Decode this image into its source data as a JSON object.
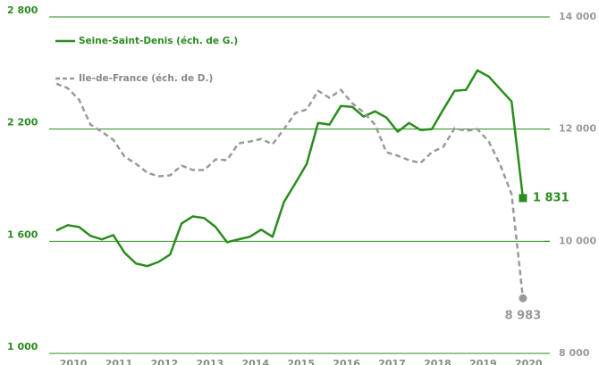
{
  "chart_data": {
    "type": "line",
    "categories": [
      null,
      "2010",
      null,
      null,
      null,
      "2011",
      null,
      null,
      null,
      "2012",
      null,
      null,
      null,
      "2013",
      null,
      null,
      null,
      "2014",
      null,
      null,
      null,
      "2015",
      null,
      null,
      null,
      "2016",
      null,
      null,
      null,
      "2017",
      null,
      null,
      null,
      "2018",
      null,
      null,
      null,
      "2019",
      null,
      null,
      null,
      "2020"
    ],
    "series": [
      {
        "name": "Seine-Saint-Denis (éch. de G.)",
        "color": "#2a8c1e",
        "marker": "square",
        "values": [
          1657,
          1686,
          1676,
          1629,
          1610,
          1633,
          1538,
          1481,
          1467,
          1490,
          1529,
          1695,
          1733,
          1724,
          1676,
          1595,
          1610,
          1624,
          1662,
          1624,
          1810,
          1910,
          2014,
          2233,
          2224,
          2324,
          2319,
          2267,
          2295,
          2262,
          2186,
          2233,
          2195,
          2200,
          2305,
          2405,
          2410,
          2514,
          2481,
          2414,
          2348,
          1831
        ],
        "value_labels": [
          null,
          null,
          null,
          null,
          null,
          null,
          null,
          null,
          null,
          null,
          null,
          null,
          null,
          null,
          null,
          null,
          null,
          null,
          null,
          null,
          null,
          null,
          null,
          null,
          null,
          null,
          null,
          null,
          null,
          null,
          null,
          null,
          null,
          null,
          null,
          null,
          null,
          null,
          null,
          null,
          null,
          "1 831"
        ]
      },
      {
        "name": "Ile-de-France (éch. de D.)",
        "color": "#999999",
        "axis": "y2",
        "dashed": true,
        "marker": "circle",
        "values": [
          12810,
          12730,
          12524,
          12080,
          11953,
          11810,
          11508,
          11381,
          11222,
          11159,
          11175,
          11350,
          11270,
          11270,
          11460,
          11445,
          11746,
          11778,
          11825,
          11730,
          12000,
          12286,
          12350,
          12683,
          12556,
          12700,
          12460,
          12300,
          12080,
          11588,
          11524,
          11445,
          11397,
          11588,
          11683,
          12016,
          11968,
          12000,
          11778,
          11365,
          10841,
          8983
        ],
        "value_labels": [
          null,
          null,
          null,
          null,
          null,
          null,
          null,
          null,
          null,
          null,
          null,
          null,
          null,
          null,
          null,
          null,
          null,
          null,
          null,
          null,
          null,
          null,
          null,
          null,
          null,
          null,
          null,
          null,
          null,
          null,
          null,
          null,
          null,
          null,
          null,
          null,
          null,
          null,
          null,
          null,
          null,
          "8 983"
        ]
      }
    ],
    "ylim": [
      1000,
      2800
    ],
    "yticks": [
      {
        "value": 1000,
        "label": "1 000"
      },
      {
        "value": 1600,
        "label": "1 600"
      },
      {
        "value": 2200,
        "label": "2 200"
      },
      {
        "value": 2800,
        "label": "2 800"
      }
    ],
    "y2lim": [
      8000,
      14000
    ],
    "y2ticks": [
      {
        "value": 8000,
        "label": "8 000"
      },
      {
        "value": 10000,
        "label": "10 000"
      },
      {
        "value": 12000,
        "label": "12 000"
      },
      {
        "value": 14000,
        "label": "14 000"
      }
    ],
    "grid": true,
    "grid_color": "#2a8c1e"
  }
}
